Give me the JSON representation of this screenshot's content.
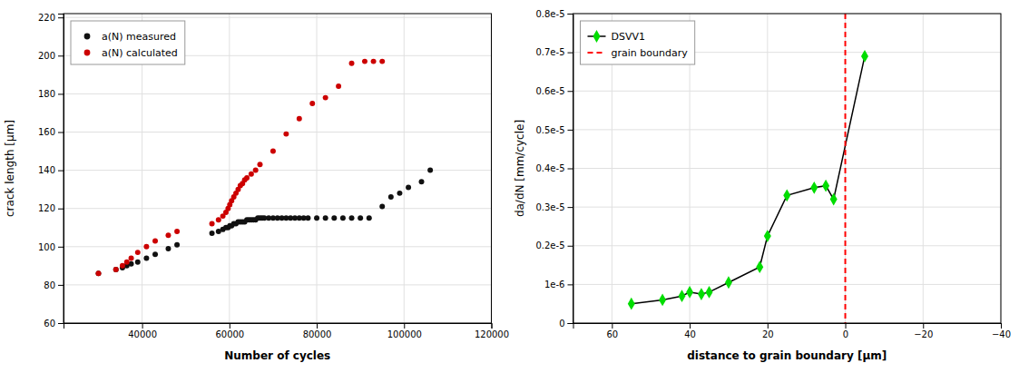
{
  "chart_data": [
    {
      "type": "scatter",
      "xlabel": "Number of cycles",
      "ylabel": "crack length [μm]",
      "xlim": [
        22000,
        120000
      ],
      "ylim": [
        60,
        222
      ],
      "xticks": [
        40000,
        60000,
        80000,
        100000,
        120000
      ],
      "yticks": [
        60,
        80,
        100,
        120,
        140,
        160,
        180,
        200,
        220
      ],
      "grid": true,
      "legend": "upper left",
      "series": [
        {
          "name": "a(N) measured",
          "color": "#111111",
          "marker": "circle",
          "x": [
            30000,
            34000,
            35500,
            36500,
            37500,
            39000,
            41000,
            43000,
            46000,
            48000,
            56000,
            57500,
            58500,
            59200,
            59700,
            60100,
            60500,
            61000,
            61500,
            62000,
            62500,
            63000,
            63500,
            64000,
            64500,
            65000,
            65500,
            66000,
            66500,
            67000,
            67500,
            68000,
            69000,
            70000,
            71000,
            72000,
            73000,
            74000,
            75000,
            76000,
            77000,
            78000,
            80000,
            82000,
            84000,
            86000,
            88000,
            90000,
            92000,
            95000,
            97000,
            99000,
            101000,
            104000,
            106000
          ],
          "values": [
            86,
            88,
            89,
            90,
            91,
            92,
            94,
            96,
            99,
            101,
            107,
            108,
            109,
            110,
            110,
            111,
            111,
            112,
            112,
            113,
            113,
            113,
            113,
            114,
            114,
            114,
            114,
            114,
            115,
            115,
            115,
            115,
            115,
            115,
            115,
            115,
            115,
            115,
            115,
            115,
            115,
            115,
            115,
            115,
            115,
            115,
            115,
            115,
            115,
            121,
            126,
            128,
            131,
            134,
            140
          ]
        },
        {
          "name": "a(N) calculated",
          "color": "#cc0000",
          "marker": "circle",
          "x": [
            30000,
            34000,
            35500,
            36500,
            37500,
            39000,
            41000,
            43000,
            46000,
            48000,
            56000,
            57500,
            58500,
            59200,
            59700,
            60100,
            60500,
            61000,
            61500,
            62000,
            62500,
            63000,
            63500,
            64000,
            65000,
            66000,
            67000,
            70000,
            73000,
            76000,
            79000,
            82000,
            85000,
            88000,
            91000,
            93000,
            95000
          ],
          "values": [
            86,
            88,
            90,
            92,
            94,
            97,
            100,
            103,
            106,
            108,
            112,
            114,
            116,
            118,
            120,
            122,
            124,
            126,
            128,
            130,
            132,
            133,
            135,
            136,
            138,
            140,
            143,
            150,
            159,
            167,
            175,
            178,
            184,
            196,
            197,
            197,
            197
          ]
        }
      ]
    },
    {
      "type": "line",
      "xlabel": "distance to grain boundary [μm]",
      "ylabel": "da/dN [mm/cycle]",
      "xlim": [
        70,
        -40
      ],
      "ylim": [
        0,
        8e-06
      ],
      "xticks": [
        60,
        40,
        20,
        0,
        {
          "value": -20,
          "label": "−20"
        },
        {
          "value": -40,
          "label": "−40"
        }
      ],
      "yticks": [
        0,
        {
          "value": 1e-06,
          "label": "1e-6"
        },
        {
          "value": 2e-06,
          "label": "0.2e-5"
        },
        {
          "value": 3e-06,
          "label": "0.3e-5"
        },
        {
          "value": 4e-06,
          "label": "0.4e-5"
        },
        {
          "value": 5e-06,
          "label": "0.5e-5"
        },
        {
          "value": 6e-06,
          "label": "0.6e-5"
        },
        {
          "value": 7e-06,
          "label": "0.7e-5"
        },
        {
          "value": 8e-06,
          "label": "0.8e-5"
        }
      ],
      "grid": true,
      "legend": "upper left",
      "series": [
        {
          "name": "DSVV1",
          "type": "line",
          "color": "#000000",
          "marker": "diamond",
          "colors": [
            "#00dd00",
            "#00dd00",
            "#00dd00",
            "#00dd00",
            "#00dd00",
            "#00dd00",
            "#00dd00",
            "#00dd00",
            "#00dd00",
            "#00dd00",
            "#00dd00",
            "#00dd00",
            "#00dd00",
            "#00dd00"
          ],
          "x": [
            55,
            47,
            42,
            40,
            37,
            35,
            30,
            22,
            20,
            15,
            8,
            5,
            3,
            -5
          ],
          "values": [
            5e-07,
            6e-07,
            7e-07,
            8e-07,
            7.5e-07,
            8e-07,
            1.05e-06,
            1.45e-06,
            2.25e-06,
            3.3e-06,
            3.5e-06,
            3.55e-06,
            3.2e-06,
            6.9e-06
          ]
        },
        {
          "name": "grain boundary",
          "type": "vline",
          "color": "#ff0000",
          "line_style": "dashed",
          "x": [
            0
          ]
        }
      ]
    }
  ]
}
